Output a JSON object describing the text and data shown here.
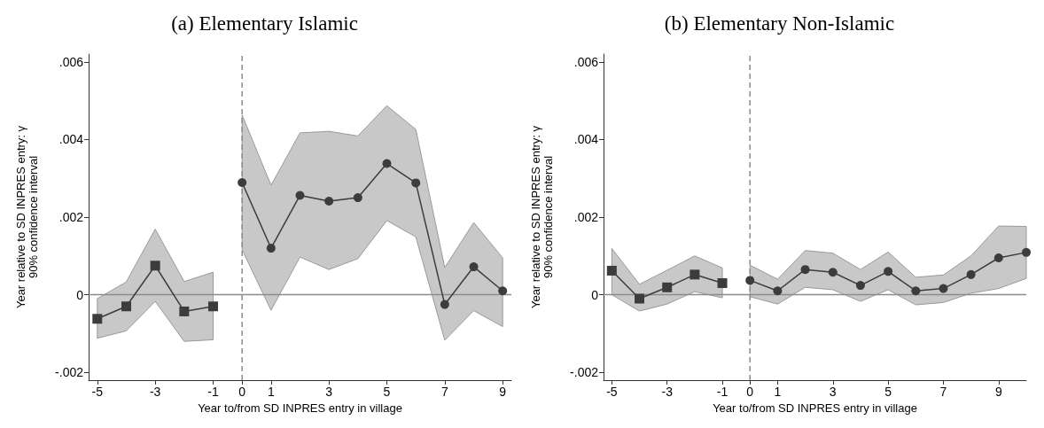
{
  "chart_data": [
    {
      "type": "line",
      "title": "(a) Elementary Islamic",
      "xlabel": "Year to/from SD INPRES entry in village",
      "ylabel": "Year relative to SD INPRES entry: γ\n90% confidence interval",
      "xlim": [
        -5.3,
        9.3
      ],
      "ylim": [
        -0.0022,
        0.0062
      ],
      "xticks": [
        -5,
        -3,
        -1,
        0,
        1,
        3,
        5,
        7,
        9
      ],
      "yticks": [
        {
          "value": -0.002,
          "label": "-.002"
        },
        0,
        {
          "value": 0.002,
          "label": ".002"
        },
        {
          "value": 0.004,
          "label": ".004"
        },
        {
          "value": 0.006,
          "label": ".006"
        }
      ],
      "grid": false,
      "line_style": "solid",
      "series": [
        {
          "color": "#3c3c3c",
          "marker": "square",
          "x": [
            -5,
            -4,
            -3,
            -2,
            -1
          ],
          "values": [
            -0.00062,
            -0.0003,
            0.00075,
            -0.00043,
            -0.0003
          ],
          "lower": [
            -0.00112,
            -0.00093,
            -0.00017,
            -0.0012,
            -0.00116
          ],
          "upper": [
            -0.0001,
            0.00033,
            0.00169,
            0.00034,
            0.00058
          ]
        },
        {
          "color": "#3c3c3c",
          "marker": "circle",
          "x": [
            0,
            1,
            2,
            3,
            4,
            5,
            6,
            7,
            8,
            9
          ],
          "values": [
            0.00289,
            0.0012,
            0.00256,
            0.00241,
            0.0025,
            0.00338,
            0.00288,
            -0.00025,
            0.00072,
            0.0001
          ],
          "lower": [
            0.00116,
            -0.0004,
            0.00097,
            0.00065,
            0.00093,
            0.00191,
            0.00149,
            -0.00117,
            -0.00041,
            -0.00082
          ],
          "upper": [
            0.00463,
            0.00282,
            0.00417,
            0.00421,
            0.00409,
            0.00487,
            0.00426,
            0.0007,
            0.00186,
            0.00095
          ]
        }
      ],
      "ref_lines": [
        {
          "axis": "x",
          "value": 0,
          "color": "#8c8c8c",
          "line_style": "dashed"
        },
        {
          "axis": "y",
          "value": 0,
          "color": "#8c8c8c",
          "line_style": "solid"
        }
      ]
    },
    {
      "type": "line",
      "title": "(b) Elementary Non-Islamic",
      "xlabel": "Year to/from SD INPRES entry in village",
      "ylabel": "Year relative to SD INPRES entry: γ\n90% confidence interval",
      "xlim": [
        -5.3,
        10
      ],
      "ylim": [
        -0.0022,
        0.0062
      ],
      "xticks": [
        -5,
        -3,
        -1,
        0,
        1,
        3,
        5,
        7,
        9
      ],
      "yticks": [
        {
          "value": -0.002,
          "label": "-.002"
        },
        0,
        {
          "value": 0.002,
          "label": ".002"
        },
        {
          "value": 0.004,
          "label": ".004"
        },
        {
          "value": 0.006,
          "label": ".006"
        }
      ],
      "grid": false,
      "line_style": "solid",
      "series": [
        {
          "color": "#3c3c3c",
          "marker": "square",
          "x": [
            -5,
            -4,
            -3,
            -2,
            -1
          ],
          "values": [
            0.00062,
            -0.0001,
            0.00019,
            0.00052,
            0.0003
          ],
          "lower": [
            0,
            -0.00042,
            -0.00024,
            8e-05,
            -8e-05
          ],
          "upper": [
            0.00119,
            0.00027,
            0.00063,
            0.001,
            0.00069
          ]
        },
        {
          "color": "#3c3c3c",
          "marker": "circle",
          "x": [
            0,
            1,
            2,
            3,
            4,
            5,
            6,
            7,
            8,
            9,
            10
          ],
          "values": [
            0.00037,
            0.0001,
            0.00065,
            0.00058,
            0.00024,
            0.0006,
            0.0001,
            0.00016,
            0.00052,
            0.00095,
            0.00109
          ],
          "lower": [
            -5e-05,
            -0.00024,
            0.00019,
            0.00013,
            -0.00017,
            0.00013,
            -0.00026,
            -0.0002,
            4e-05,
            0.00016,
            0.00042
          ],
          "upper": [
            0.00076,
            0.0004,
            0.00114,
            0.00107,
            0.00065,
            0.0011,
            0.00045,
            0.00051,
            0.001,
            0.00177,
            0.00176
          ]
        }
      ],
      "ref_lines": [
        {
          "axis": "x",
          "value": 0,
          "color": "#8c8c8c",
          "line_style": "dashed"
        },
        {
          "axis": "y",
          "value": 0,
          "color": "#8c8c8c",
          "line_style": "solid"
        }
      ]
    }
  ]
}
